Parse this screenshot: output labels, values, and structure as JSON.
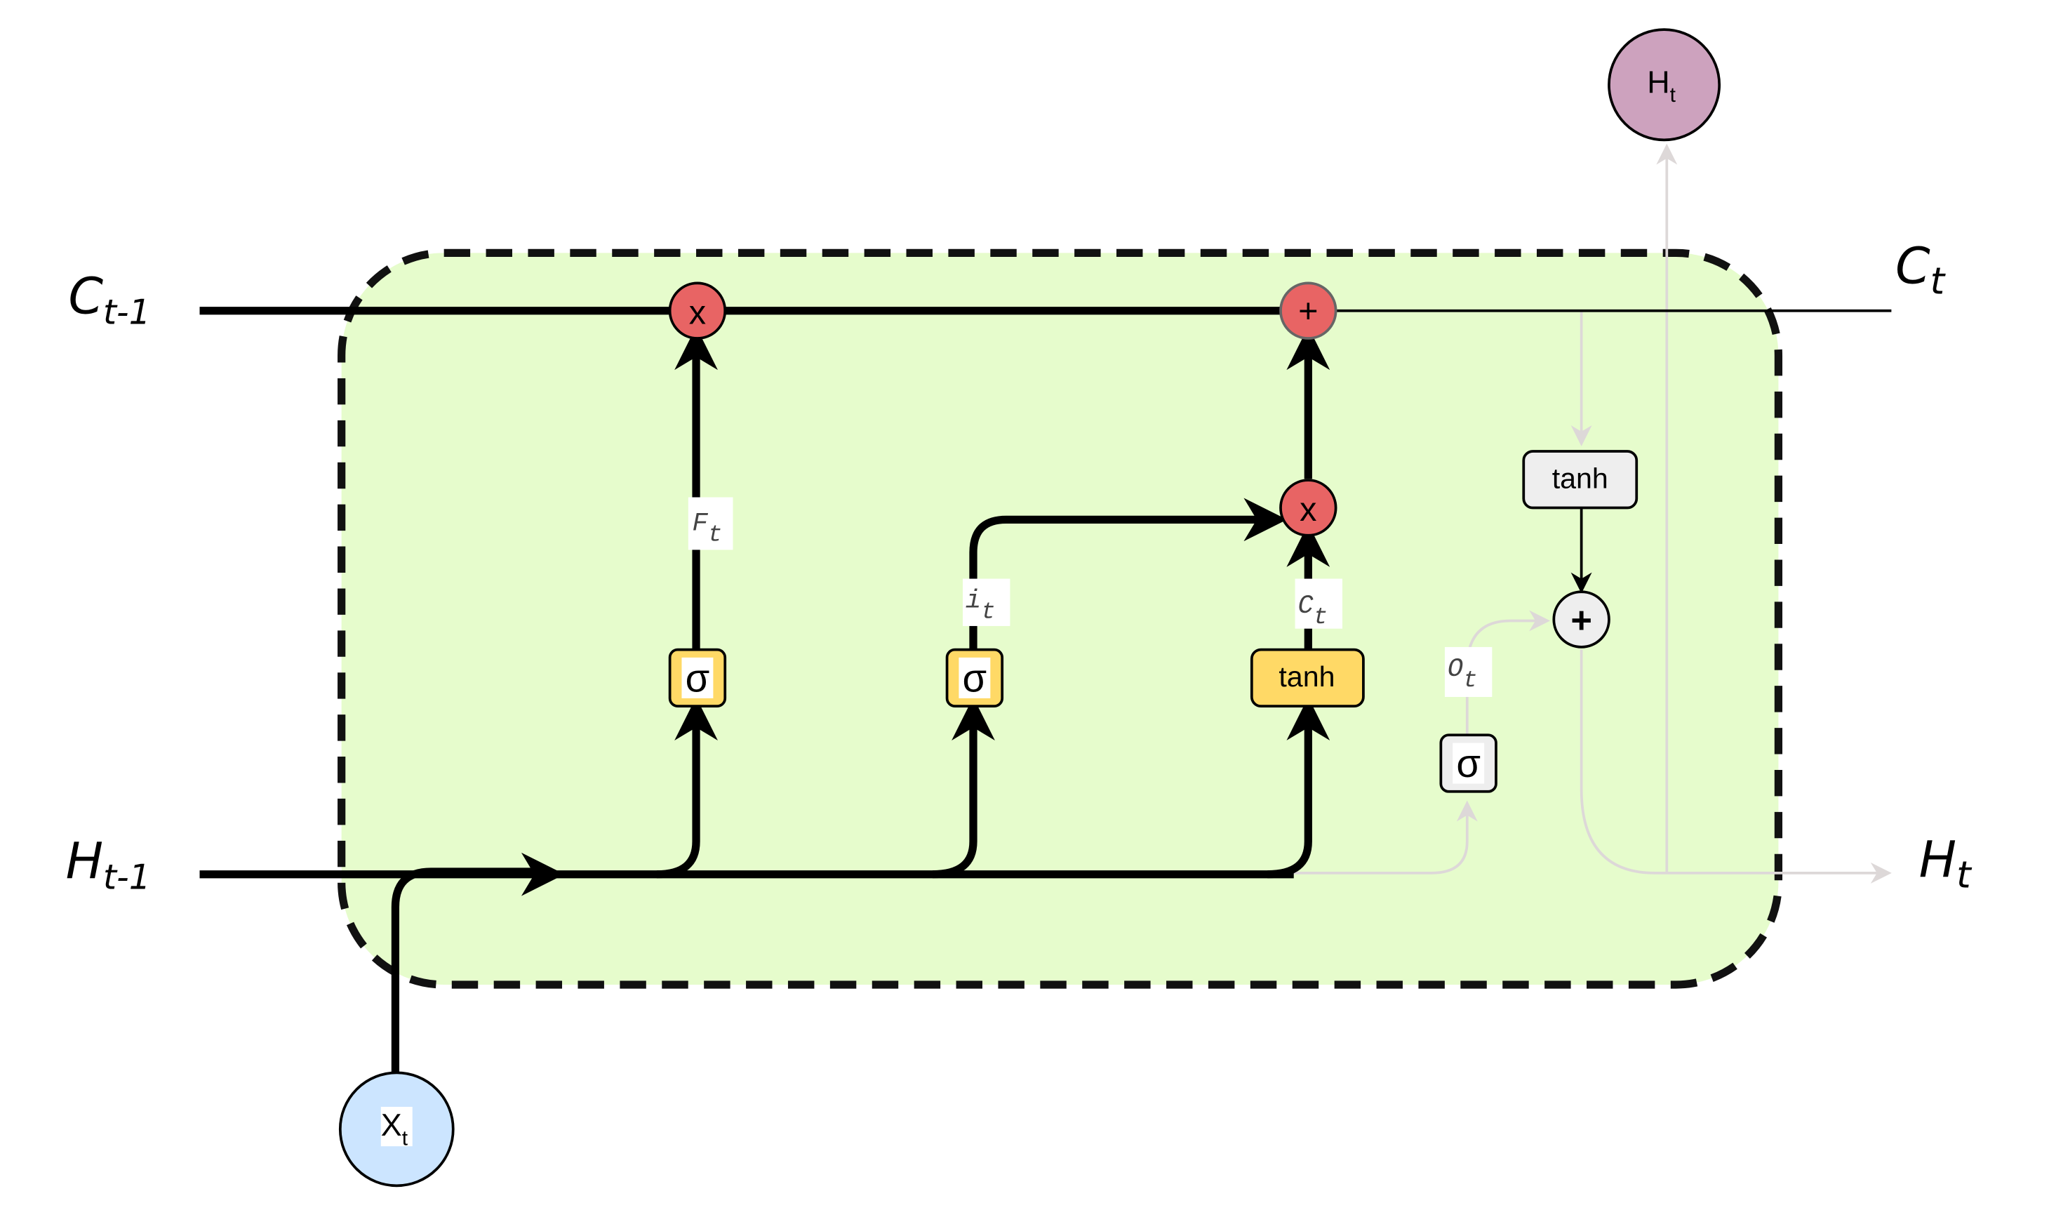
{
  "colors": {
    "cell_fill": "#e6fccc",
    "cell_border": "#111111",
    "multiply_node": "#e86464",
    "add_node_top": "#e86464",
    "gate_fill": "#ffd966",
    "output_gate_fill": "#eeeeee",
    "x_input_fill": "#cce5ff",
    "h_output_fill": "#cda2be",
    "faint_line": "#ddd8d8"
  },
  "labels": {
    "c_prev": {
      "main": "C",
      "sub": "t-1"
    },
    "c_next": {
      "main": "C",
      "sub": "t"
    },
    "h_prev": {
      "main": "H",
      "sub": "t-1"
    },
    "h_next": {
      "main": "H",
      "sub": "t"
    }
  },
  "nodes": {
    "forget_multiply": "x",
    "cell_add": "+",
    "input_multiply": "x",
    "output_add": "+",
    "x_input": {
      "main": "X",
      "sub": "t"
    },
    "h_output": {
      "main": "H",
      "sub": "t"
    }
  },
  "gates": {
    "forget_sigma": "σ",
    "input_sigma": "σ",
    "candidate_tanh": "tanh",
    "output_sigma": "σ",
    "cell_tanh": "tanh"
  },
  "edge_labels": {
    "forget": {
      "main": "F",
      "sub": "t"
    },
    "input": {
      "main": "i",
      "sub": "t"
    },
    "candidate": {
      "main": "C",
      "sub": "t"
    },
    "output": {
      "main": "O",
      "sub": "t"
    }
  },
  "icons": {
    "arrow": "arrowhead-icon"
  }
}
